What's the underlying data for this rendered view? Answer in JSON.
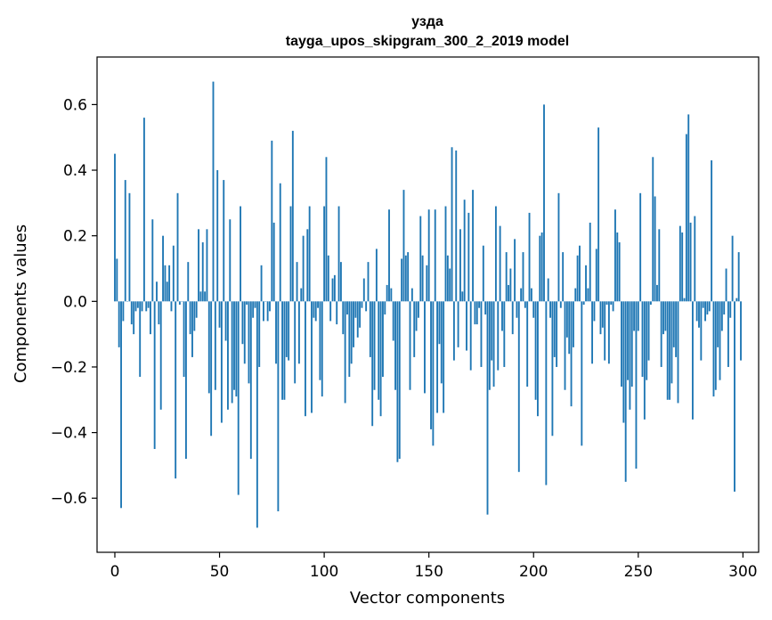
{
  "chart_data": {
    "type": "bar",
    "title": "узда",
    "subtitle": "tayga_upos_skipgram_300_2_2019 model",
    "xlabel": "Vector components",
    "ylabel": "Components values",
    "xlim": [
      -8.5,
      307.5
    ],
    "ylim": [
      -0.765,
      0.745
    ],
    "xticks": [
      0,
      50,
      100,
      150,
      200,
      250,
      300
    ],
    "yticks": [
      -0.6,
      -0.4,
      -0.2,
      0.0,
      0.2,
      0.4,
      0.6
    ],
    "xtick_labels": [
      "0",
      "50",
      "100",
      "150",
      "200",
      "250",
      "300"
    ],
    "ytick_labels": [
      "−0.6",
      "−0.4",
      "−0.2",
      "0.0",
      "0.2",
      "0.4",
      "0.6"
    ],
    "grid": false,
    "bar_color": "#1f77b4",
    "x_start": 0,
    "values": [
      0.45,
      0.13,
      -0.14,
      -0.63,
      -0.06,
      0.37,
      0.0,
      0.33,
      -0.07,
      -0.1,
      -0.03,
      -0.02,
      -0.23,
      -0.03,
      0.56,
      -0.03,
      -0.02,
      -0.1,
      0.25,
      -0.45,
      0.06,
      -0.07,
      -0.33,
      0.2,
      0.11,
      0.06,
      0.11,
      -0.03,
      0.17,
      -0.54,
      0.33,
      -0.01,
      0.0,
      -0.23,
      -0.48,
      0.12,
      -0.1,
      -0.17,
      -0.09,
      -0.05,
      0.22,
      0.03,
      0.18,
      0.03,
      0.22,
      -0.28,
      -0.41,
      0.67,
      -0.27,
      0.4,
      -0.08,
      -0.37,
      0.37,
      -0.12,
      -0.33,
      0.25,
      -0.31,
      -0.27,
      -0.29,
      -0.59,
      0.29,
      -0.13,
      -0.19,
      -0.01,
      -0.25,
      -0.48,
      -0.05,
      -0.02,
      -0.69,
      -0.2,
      0.11,
      -0.06,
      0.0,
      -0.06,
      -0.03,
      0.49,
      0.24,
      -0.19,
      -0.64,
      0.36,
      -0.3,
      -0.3,
      -0.17,
      -0.18,
      0.29,
      0.52,
      -0.25,
      0.12,
      -0.19,
      0.04,
      0.2,
      -0.35,
      0.22,
      0.29,
      -0.34,
      -0.05,
      -0.06,
      -0.02,
      -0.24,
      -0.29,
      0.29,
      0.44,
      0.14,
      -0.06,
      0.07,
      0.08,
      -0.07,
      0.29,
      0.12,
      -0.1,
      -0.31,
      -0.04,
      -0.23,
      -0.19,
      -0.14,
      -0.05,
      -0.11,
      -0.08,
      -0.02,
      0.07,
      -0.03,
      0.12,
      -0.17,
      -0.38,
      -0.27,
      0.16,
      -0.3,
      -0.35,
      -0.23,
      -0.04,
      0.05,
      0.28,
      0.04,
      -0.12,
      -0.27,
      -0.49,
      -0.48,
      0.13,
      0.34,
      0.14,
      0.15,
      -0.27,
      0.04,
      -0.17,
      -0.09,
      -0.05,
      0.26,
      0.14,
      -0.28,
      0.11,
      0.28,
      -0.39,
      -0.44,
      0.28,
      -0.34,
      -0.13,
      -0.25,
      -0.34,
      0.29,
      0.14,
      0.1,
      0.47,
      -0.18,
      0.46,
      -0.14,
      0.22,
      0.03,
      0.31,
      -0.15,
      0.27,
      -0.21,
      0.34,
      -0.07,
      -0.07,
      -0.02,
      -0.2,
      0.17,
      -0.04,
      -0.65,
      -0.27,
      -0.18,
      -0.26,
      0.29,
      -0.21,
      0.23,
      -0.09,
      -0.2,
      0.15,
      0.05,
      0.1,
      -0.1,
      0.19,
      -0.05,
      -0.52,
      0.04,
      0.15,
      -0.02,
      -0.26,
      0.27,
      0.04,
      -0.05,
      -0.3,
      -0.35,
      0.2,
      0.21,
      0.6,
      -0.56,
      0.07,
      -0.05,
      -0.41,
      -0.17,
      -0.2,
      0.33,
      -0.02,
      0.15,
      -0.27,
      -0.11,
      -0.16,
      -0.32,
      -0.14,
      0.04,
      0.14,
      0.17,
      -0.44,
      -0.01,
      0.11,
      0.04,
      0.24,
      -0.19,
      -0.06,
      0.16,
      0.53,
      -0.1,
      -0.08,
      -0.18,
      -0.01,
      -0.19,
      -0.01,
      -0.03,
      0.28,
      0.21,
      0.18,
      -0.26,
      -0.37,
      -0.55,
      -0.24,
      -0.33,
      -0.26,
      -0.09,
      -0.51,
      -0.09,
      0.33,
      -0.23,
      -0.36,
      -0.24,
      -0.18,
      -0.01,
      0.44,
      0.32,
      0.05,
      0.22,
      -0.2,
      -0.1,
      -0.09,
      -0.3,
      -0.3,
      -0.25,
      -0.14,
      -0.17,
      -0.31,
      0.23,
      0.21,
      0.01,
      0.51,
      0.57,
      0.24,
      -0.36,
      0.26,
      -0.06,
      -0.08,
      -0.18,
      -0.02,
      -0.06,
      -0.04,
      -0.03,
      0.43,
      -0.29,
      -0.27,
      -0.14,
      -0.24,
      -0.09,
      -0.04,
      0.1,
      -0.2,
      -0.05,
      0.2,
      -0.58,
      0.01,
      0.15,
      -0.18
    ]
  }
}
